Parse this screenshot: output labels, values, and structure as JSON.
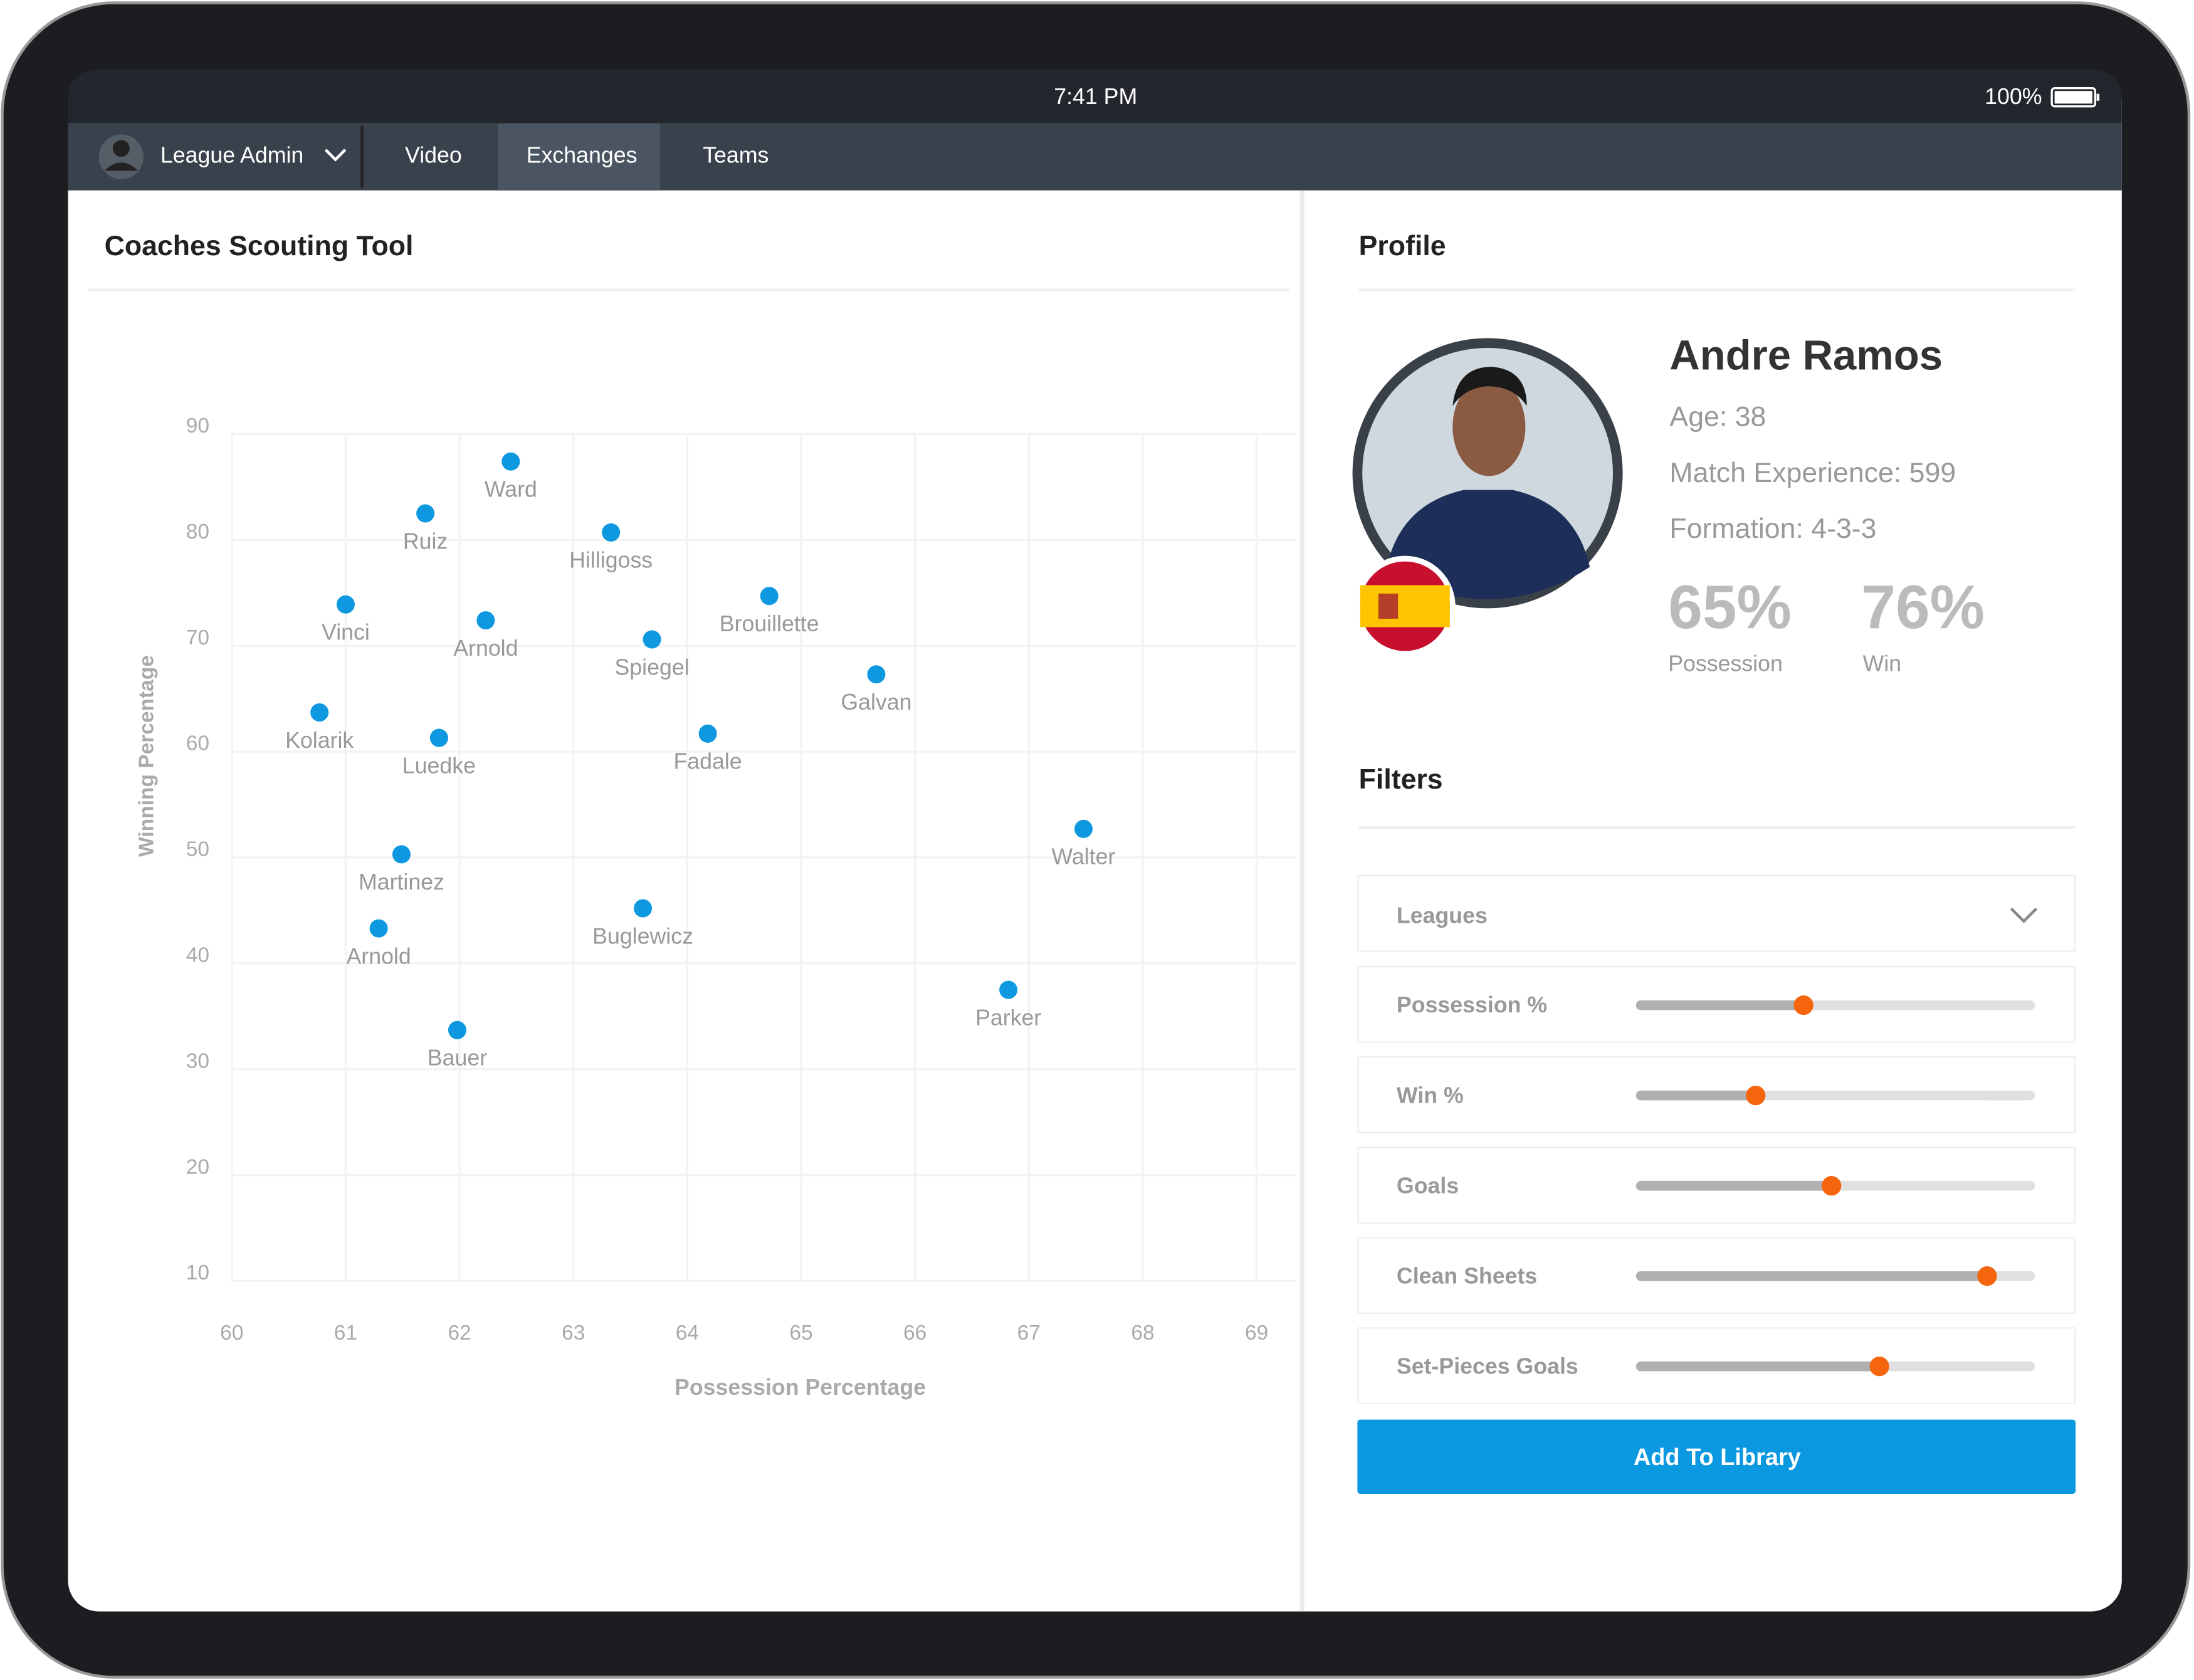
{
  "status_bar": {
    "time": "7:41 PM",
    "battery": "100%"
  },
  "nav": {
    "user": "League Admin",
    "tabs": [
      "Video",
      "Exchanges",
      "Teams"
    ]
  },
  "scouting": {
    "title": "Coaches Scouting Tool",
    "chart": {
      "type": "scatter",
      "x_label": "Possession Percentage",
      "y_label": "Winning Percentage",
      "color": "#0d98e0",
      "xlim": [
        60,
        69
      ],
      "ylim": [
        10,
        90
      ],
      "xticks": [
        60,
        61,
        62,
        63,
        64,
        65,
        66,
        67,
        68,
        69
      ],
      "yticks": [
        90,
        80,
        70,
        60,
        50,
        40,
        30,
        20,
        10
      ],
      "grid": true,
      "points": [
        {
          "name": "Ward",
          "x": 62.45,
          "y": 87.4
        },
        {
          "name": "Ruiz",
          "x": 61.7,
          "y": 82.5
        },
        {
          "name": "Hilligoss",
          "x": 63.33,
          "y": 80.7
        },
        {
          "name": "Vinci",
          "x": 61.0,
          "y": 73.9
        },
        {
          "name": "Arnold",
          "x": 62.23,
          "y": 72.4
        },
        {
          "name": "Brouillette",
          "x": 64.72,
          "y": 74.7
        },
        {
          "name": "Spiegel",
          "x": 63.69,
          "y": 70.6
        },
        {
          "name": "Galvan",
          "x": 65.66,
          "y": 67.3
        },
        {
          "name": "Kolarik",
          "x": 60.77,
          "y": 63.7
        },
        {
          "name": "Luedke",
          "x": 61.82,
          "y": 61.3
        },
        {
          "name": "Fadale",
          "x": 64.18,
          "y": 61.7
        },
        {
          "name": "Walter",
          "x": 67.48,
          "y": 52.7
        },
        {
          "name": "Martinez",
          "x": 61.49,
          "y": 50.3
        },
        {
          "name": "Buglewicz",
          "x": 63.61,
          "y": 45.2
        },
        {
          "name": "Arnold",
          "x": 61.29,
          "y": 43.3
        },
        {
          "name": "Parker",
          "x": 66.82,
          "y": 37.5
        },
        {
          "name": "Bauer",
          "x": 61.98,
          "y": 33.7
        }
      ]
    }
  },
  "profile": {
    "title": "Profile",
    "name": "Andre Ramos",
    "age": "Age: 38",
    "experience": "Match Experience: 599",
    "formation": "Formation: 4-3-3",
    "stats": [
      {
        "value": "65%",
        "label": "Possession"
      },
      {
        "value": "76%",
        "label": "Win"
      }
    ]
  },
  "filters": {
    "title": "Filters",
    "leagues": "Leagues",
    "sliders": [
      {
        "name": "Possession %",
        "value": 42
      },
      {
        "name": "Win %",
        "value": 30
      },
      {
        "name": "Goals",
        "value": 49
      },
      {
        "name": "Clean Sheets",
        "value": 88
      },
      {
        "name": "Set-Pieces Goals",
        "value": 61
      }
    ],
    "button": "Add To Library"
  }
}
